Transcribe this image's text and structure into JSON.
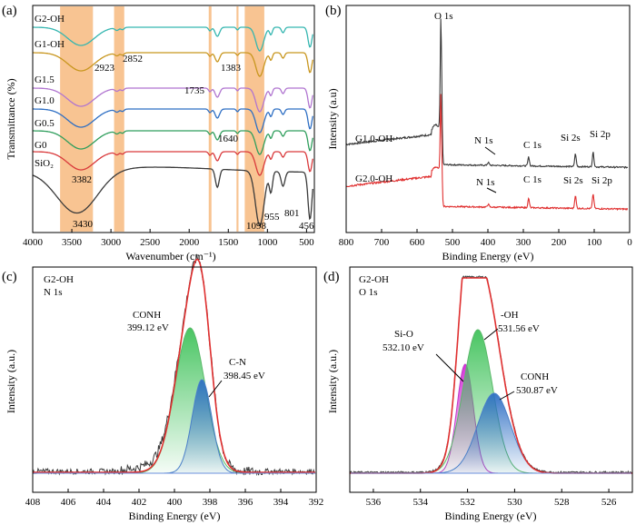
{
  "chart_data": [
    {
      "panel": "(a)",
      "type": "line",
      "xlabel": "Wavenumber (cm⁻¹)",
      "ylabel": "Transmittance (%)",
      "xlim": [
        4000,
        400
      ],
      "xticks": [
        "4000",
        "3500",
        "3000",
        "2500",
        "2000",
        "1500",
        "1000",
        "500"
      ],
      "series": [
        {
          "name": "G2-OH",
          "color": "#35b6b0"
        },
        {
          "name": "G1-OH",
          "color": "#c8961e"
        },
        {
          "name": "G1.5",
          "color": "#b075d0"
        },
        {
          "name": "G1.0",
          "color": "#2e6fc4"
        },
        {
          "name": "G0.5",
          "color": "#2f9e5c"
        },
        {
          "name": "G0",
          "color": "#d9393b"
        },
        {
          "name": "SiO₂",
          "color": "#3a3a3a"
        }
      ],
      "highlight_bands_cm1": [
        [
          3650,
          3230
        ],
        [
          2960,
          2830
        ],
        [
          1750,
          1715
        ],
        [
          1395,
          1370
        ],
        [
          1290,
          1040
        ]
      ],
      "annotations": [
        "3382",
        "2923",
        "2852",
        "1735",
        "1383",
        "1640",
        "3430",
        "1098",
        "955",
        "801",
        "456"
      ]
    },
    {
      "panel": "(b)",
      "type": "line",
      "xlabel": "Binding Energy (eV)",
      "ylabel": "Intensity (a.u)",
      "xlim": [
        800,
        0
      ],
      "xticks": [
        "800",
        "700",
        "600",
        "500",
        "400",
        "300",
        "200",
        "100",
        "0"
      ],
      "series": [
        {
          "name": "G1.0-OH",
          "color": "#3a3a3a"
        },
        {
          "name": "G2.0-OH",
          "color": "#e03030"
        }
      ],
      "peaks": [
        "O 1s",
        "N 1s",
        "C 1s",
        "Si 2s",
        "Si 2p"
      ],
      "peak_positions_eV": {
        "O 1s": 532,
        "N 1s": 399,
        "C 1s": 285,
        "Si 2s": 153,
        "Si 2p": 103
      }
    },
    {
      "panel": "(c)",
      "type": "line",
      "title": "G2-OH",
      "subtitle": "N 1s",
      "xlabel": "Binding Energy (eV)",
      "ylabel": "Intensity (a.u.)",
      "xlim": [
        408,
        392
      ],
      "xticks": [
        "408",
        "406",
        "404",
        "402",
        "400",
        "398",
        "396",
        "394",
        "392"
      ],
      "components": [
        {
          "name": "CONH",
          "center_eV": 399.12,
          "label": "399.12 eV",
          "color": "#7dd48a"
        },
        {
          "name": "C-N",
          "center_eV": 398.45,
          "label": "398.45 eV",
          "color": "#6f9fd8"
        }
      ]
    },
    {
      "panel": "(d)",
      "type": "line",
      "title": "G2-OH",
      "subtitle": "O 1s",
      "xlabel": "Binding Energy (eV)",
      "ylabel": "Intensity (a.u.)",
      "xlim": [
        537,
        525
      ],
      "xticks": [
        "536",
        "534",
        "532",
        "530",
        "528",
        "526"
      ],
      "components": [
        {
          "name": "Si-O",
          "center_eV": 532.1,
          "label": "532.10 eV",
          "color": "#e07ae8"
        },
        {
          "name": "-OH",
          "center_eV": 531.56,
          "label": "531.56 eV",
          "color": "#7dd48a"
        },
        {
          "name": "CONH",
          "center_eV": 530.87,
          "label": "530.87 eV",
          "color": "#6f9fd8"
        }
      ]
    }
  ]
}
